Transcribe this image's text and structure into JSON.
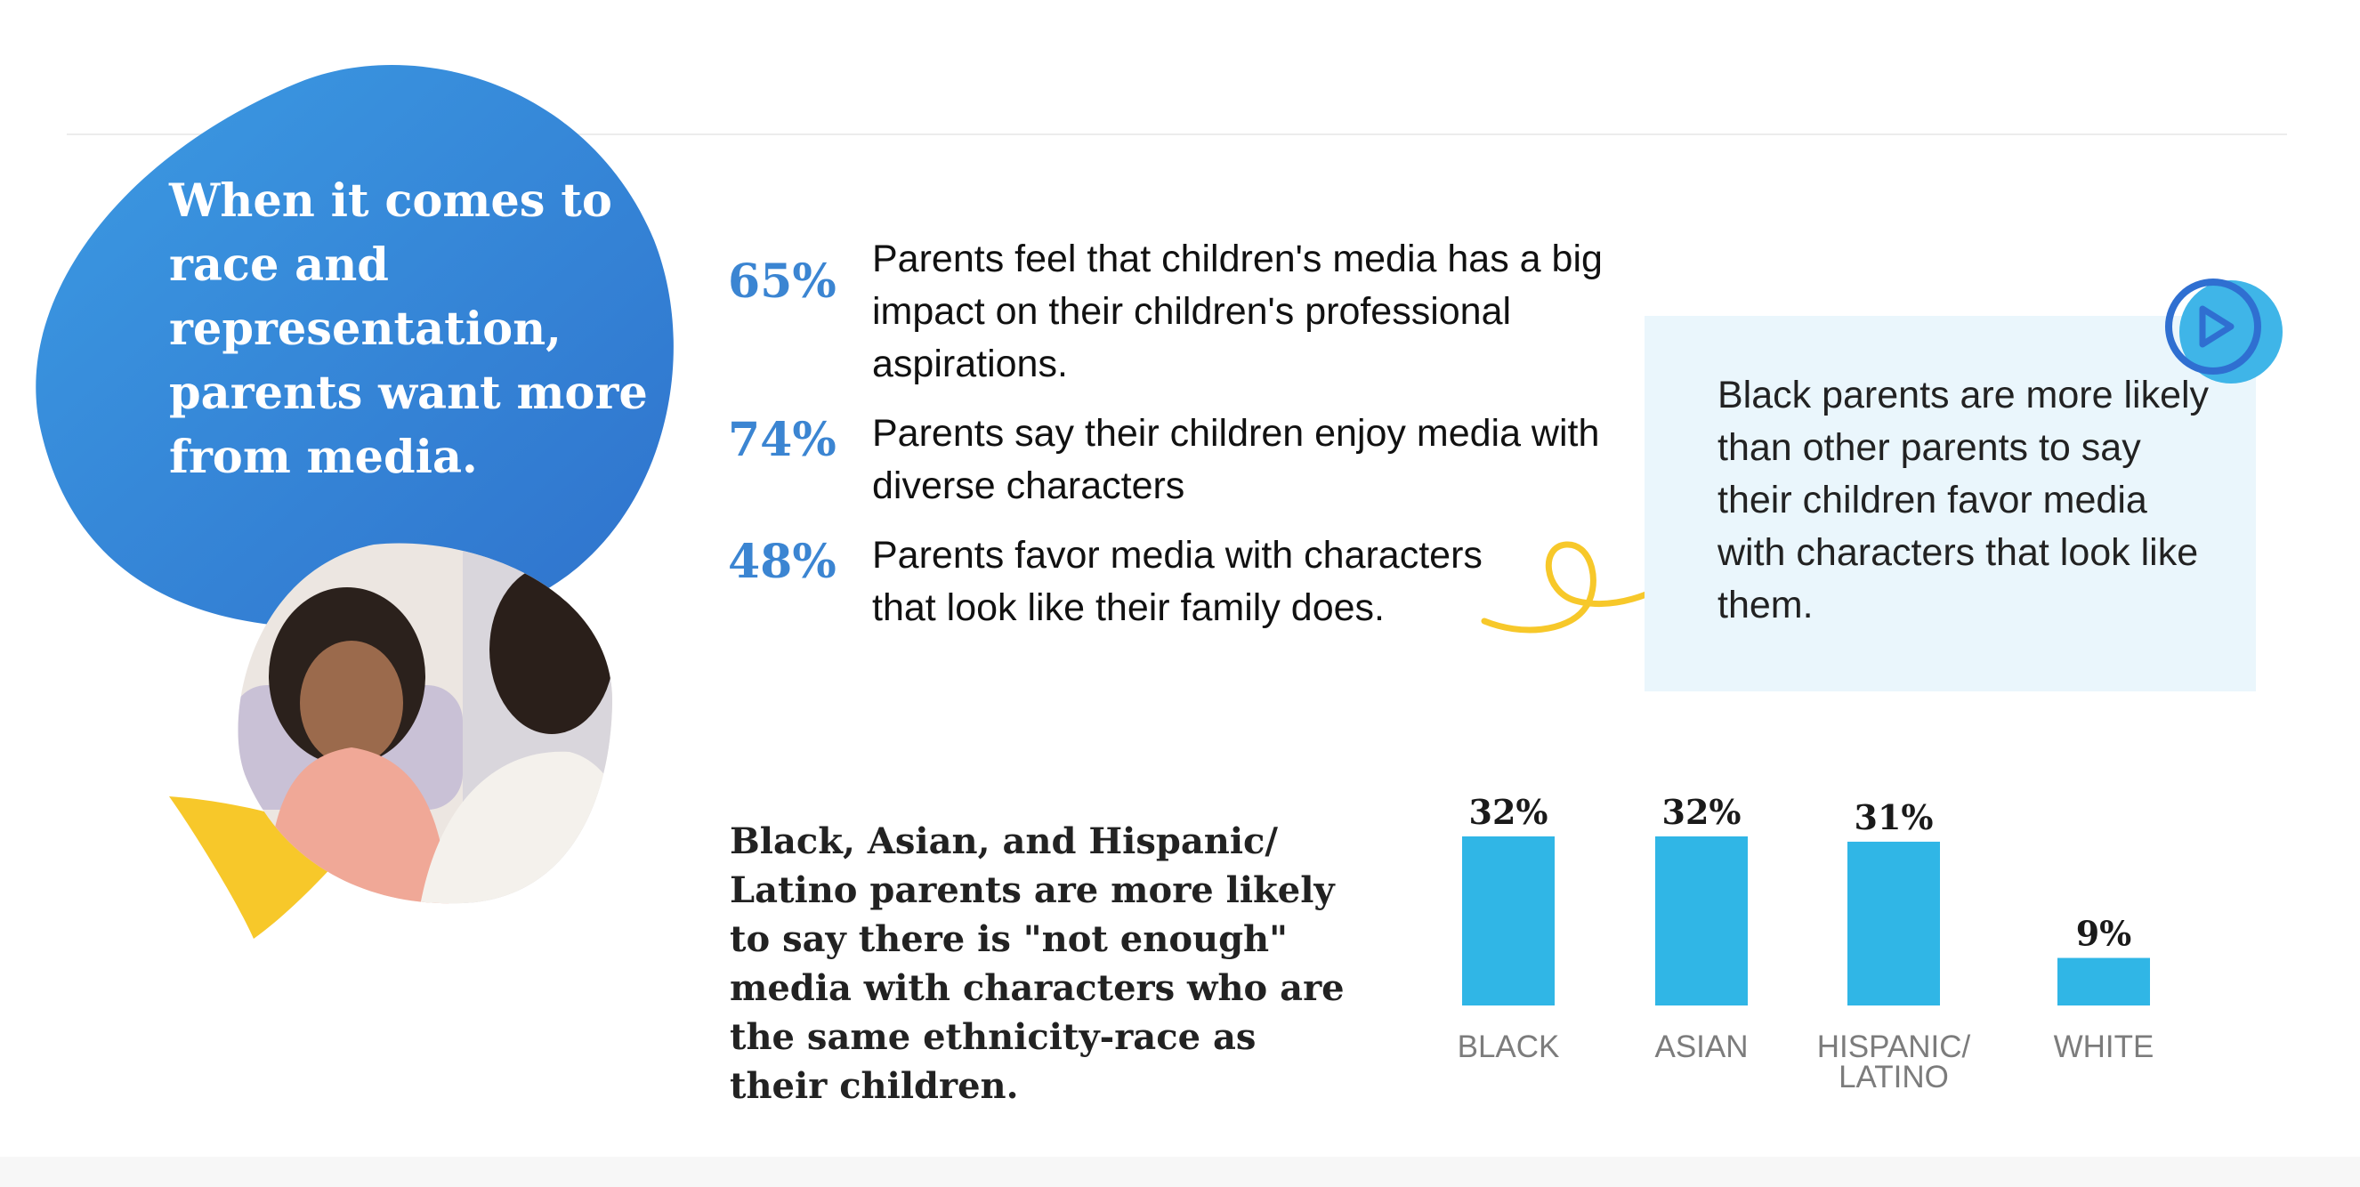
{
  "headline": "When it comes to race and representation, parents want more from media.",
  "stats": [
    {
      "percent": "65%",
      "text": "Parents feel that children's media has a big impact on their children's professional aspirations."
    },
    {
      "percent": "74%",
      "text": "Parents say their children enjoy media with diverse characters"
    },
    {
      "percent": "48%",
      "text": "Parents favor media with characters that look like their family does."
    }
  ],
  "callout": {
    "text": "Black parents are more likely than other parents to say their children favor media with characters that look like them."
  },
  "finding": "Black, Asian, and Hispanic/ Latino parents are more likely to say there is \"not enough\" media with characters who are the same ethnicity-race as their children.",
  "colors": {
    "blob": "#2e7fd3",
    "bar": "#30b6e6",
    "accent_yellow": "#f7c82a",
    "stat": "#3b85d2",
    "callout_bg": "#eaf6fc"
  },
  "chart_data": {
    "type": "bar",
    "title": "",
    "xlabel": "",
    "ylabel": "",
    "ylim": [
      0,
      32
    ],
    "categories": [
      "BLACK",
      "ASIAN",
      "HISPANIC/\nLATINO",
      "WHITE"
    ],
    "values": [
      32,
      32,
      31,
      9
    ],
    "value_labels": [
      "32%",
      "32%",
      "31%",
      "9%"
    ],
    "grid": false,
    "legend": "none"
  }
}
